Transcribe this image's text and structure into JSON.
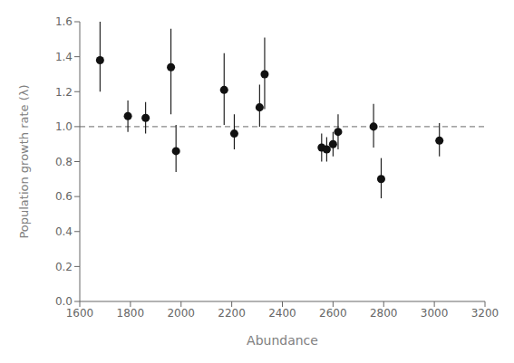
{
  "chart_data": {
    "type": "scatter",
    "xlabel": "Abundance",
    "ylabel": "Population growth rate (λ)",
    "x": [
      1680,
      1790,
      1860,
      1960,
      1980,
      2170,
      2210,
      2310,
      2330,
      2555,
      2575,
      2600,
      2620,
      2760,
      2790,
      3020
    ],
    "values": [
      1.38,
      1.06,
      1.05,
      1.34,
      0.86,
      1.21,
      0.96,
      1.11,
      1.3,
      0.88,
      0.87,
      0.9,
      0.97,
      1.0,
      0.7,
      0.92
    ],
    "yerr_lo": [
      0.18,
      0.09,
      0.09,
      0.27,
      0.12,
      0.2,
      0.09,
      0.11,
      0.2,
      0.08,
      0.07,
      0.07,
      0.1,
      0.12,
      0.11,
      0.09
    ],
    "yerr_hi": [
      0.22,
      0.09,
      0.09,
      0.22,
      0.15,
      0.21,
      0.11,
      0.13,
      0.21,
      0.08,
      0.07,
      0.07,
      0.1,
      0.13,
      0.12,
      0.1
    ],
    "color": "#111111",
    "marker": "circle",
    "xlim": [
      1600,
      3200
    ],
    "ylim": [
      0.0,
      1.6
    ],
    "xticks": [
      1600,
      1800,
      2000,
      2200,
      2400,
      2600,
      2800,
      3000,
      3200
    ],
    "yticks": [
      {
        "value": 0.0,
        "label": "0.0"
      },
      {
        "value": 0.2,
        "label": "0.2"
      },
      {
        "value": 0.4,
        "label": "0.4"
      },
      {
        "value": 0.6,
        "label": "0.6"
      },
      {
        "value": 0.8,
        "label": "0.8"
      },
      {
        "value": 1.0,
        "label": "1.0"
      },
      {
        "value": 1.2,
        "label": "1.2"
      },
      {
        "value": 1.4,
        "label": "1.4"
      },
      {
        "value": 1.6,
        "label": "1.6"
      }
    ],
    "hline": {
      "y": 1.0,
      "color": "#888888",
      "line_style": "dashed"
    },
    "grid": false
  }
}
